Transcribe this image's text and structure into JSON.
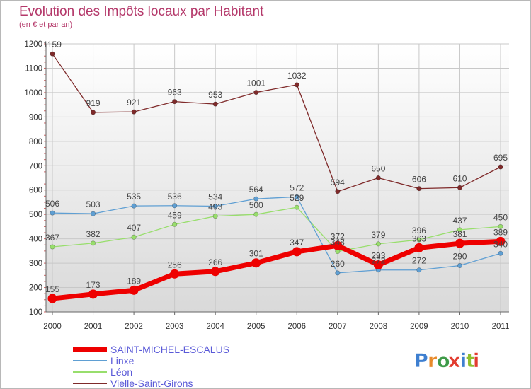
{
  "title": "Evolution des Impôts locaux par Habitant",
  "subtitle": "(en € et par an)",
  "logo": {
    "text": "Proxiti",
    "colors": [
      "#3e7fd0",
      "#e88a2a",
      "#3e9a48",
      "#e23b2e",
      "#3e7fd0",
      "#8fbf2e",
      "#e23b2e"
    ]
  },
  "chart_data": {
    "type": "line",
    "title": "Evolution des Impôts locaux par Habitant",
    "subtitle": "(en € et par an)",
    "xlabel": "",
    "ylabel": "",
    "x": [
      "2000",
      "2001",
      "2002",
      "2003",
      "2004",
      "2005",
      "2006",
      "2007",
      "2008",
      "2009",
      "2010",
      "2011"
    ],
    "ylim": [
      100,
      1200
    ],
    "yticks": [
      100,
      200,
      300,
      400,
      500,
      600,
      700,
      800,
      900,
      1000,
      1100,
      1200
    ],
    "grid": true,
    "legend_position": "bottom-left",
    "series": [
      {
        "name": "SAINT-MICHEL-ESCALUS",
        "color": "#ee0000",
        "values": [
          155,
          173,
          189,
          256,
          266,
          301,
          347,
          372,
          293,
          363,
          381,
          389
        ]
      },
      {
        "name": "Linxe",
        "color": "#5f9fd3",
        "values": [
          506,
          503,
          535,
          536,
          534,
          564,
          572,
          260,
          272,
          272,
          290,
          340
        ]
      },
      {
        "name": "Léon",
        "color": "#98de6c",
        "values": [
          367,
          382,
          407,
          459,
          493,
          500,
          529,
          348,
          379,
          396,
          437,
          450
        ]
      },
      {
        "name": "Vielle-Saint-Girons",
        "color": "#7f2a2a",
        "values": [
          1159,
          919,
          921,
          963,
          953,
          1001,
          1032,
          594,
          650,
          606,
          610,
          695
        ]
      }
    ]
  }
}
